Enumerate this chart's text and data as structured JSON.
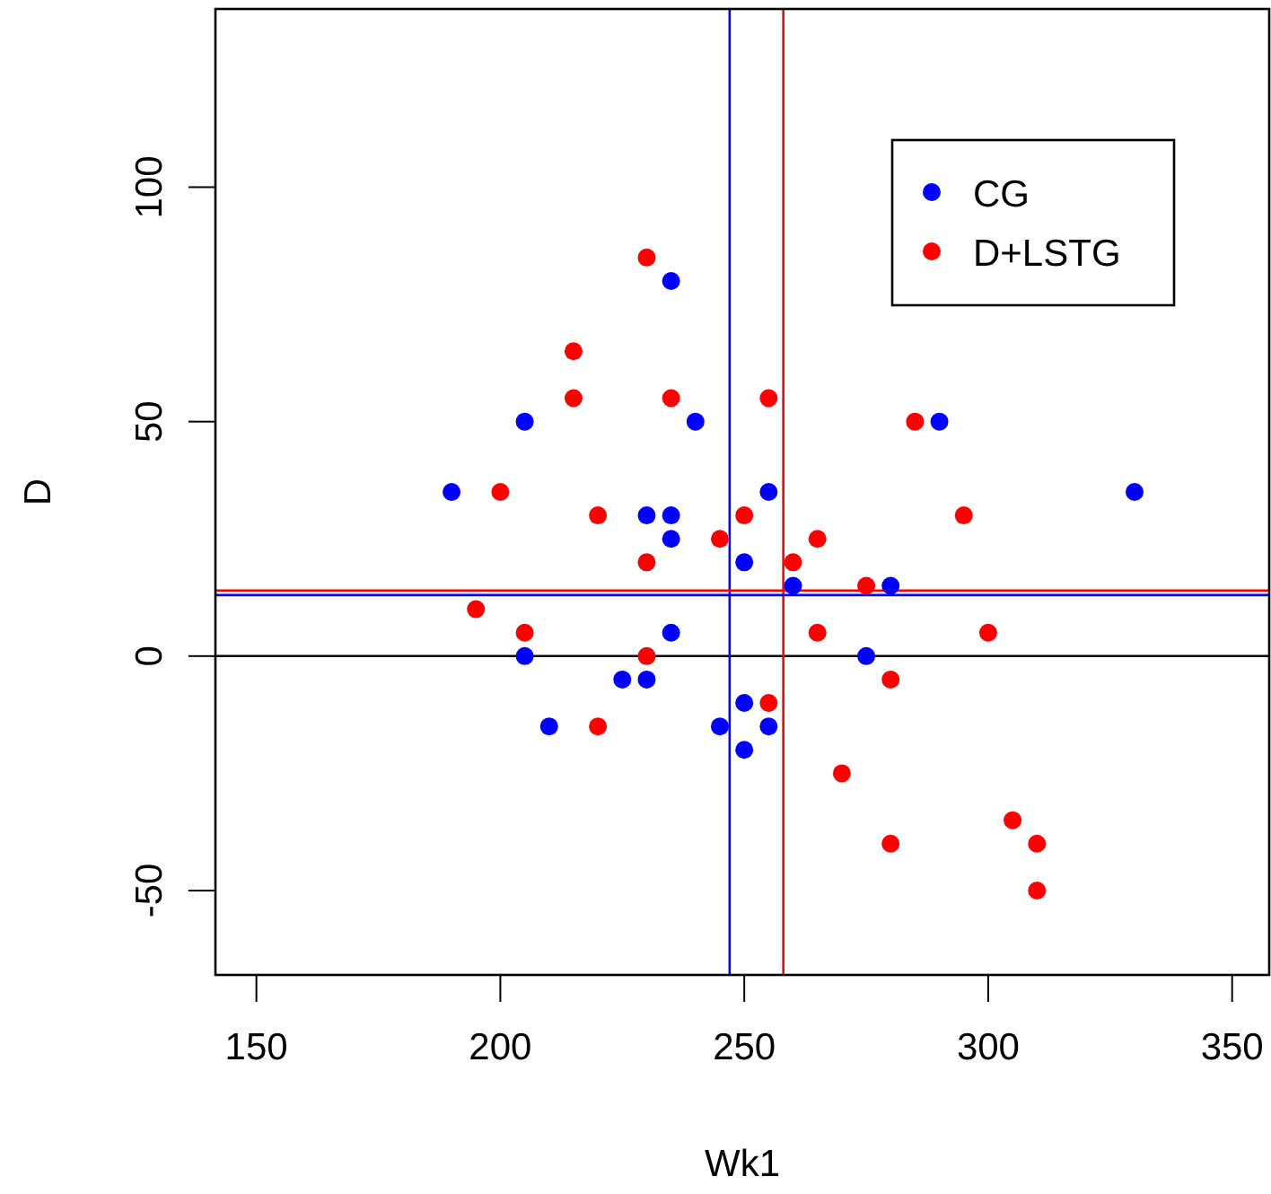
{
  "chart_data": {
    "type": "scatter",
    "xlabel": "Wk1",
    "ylabel": "D",
    "xlim": [
      141.6,
      357.6
    ],
    "ylim": [
      -68,
      138
    ],
    "xticks": [
      150,
      200,
      250,
      300,
      350
    ],
    "yticks": [
      -50,
      0,
      50,
      100
    ],
    "grid": false,
    "legend": "top right",
    "marker": "circle",
    "series": [
      {
        "name": "CG",
        "color": "#0000ff",
        "x": [
          190,
          205,
          205,
          210,
          225,
          230,
          230,
          235,
          235,
          235,
          235,
          240,
          245,
          250,
          250,
          250,
          255,
          255,
          260,
          275,
          280,
          290,
          330
        ],
        "values": [
          35,
          50,
          0,
          -15,
          -5,
          30,
          -5,
          80,
          30,
          25,
          5,
          50,
          -15,
          20,
          -10,
          -20,
          35,
          -15,
          15,
          0,
          15,
          50,
          35
        ]
      },
      {
        "name": "D+LSTG",
        "color": "#ff0000",
        "x": [
          195,
          200,
          205,
          215,
          215,
          220,
          220,
          230,
          230,
          230,
          235,
          245,
          250,
          255,
          255,
          260,
          265,
          265,
          270,
          275,
          280,
          280,
          285,
          295,
          300,
          305,
          310,
          310
        ],
        "values": [
          10,
          35,
          5,
          65,
          55,
          30,
          -15,
          85,
          20,
          0,
          55,
          25,
          30,
          55,
          -10,
          20,
          25,
          5,
          -25,
          15,
          -5,
          -40,
          50,
          30,
          5,
          -35,
          -40,
          -50
        ]
      }
    ],
    "ref_lines": [
      {
        "axis": "y",
        "value": 0,
        "color": "#000000"
      },
      {
        "axis": "x",
        "value": 247,
        "color": "#0000ff"
      },
      {
        "axis": "x",
        "value": 258,
        "color": "#ff0000"
      },
      {
        "axis": "y",
        "value": 13,
        "color": "#0000ff"
      },
      {
        "axis": "y",
        "value": 14,
        "color": "#ff0000"
      }
    ]
  }
}
